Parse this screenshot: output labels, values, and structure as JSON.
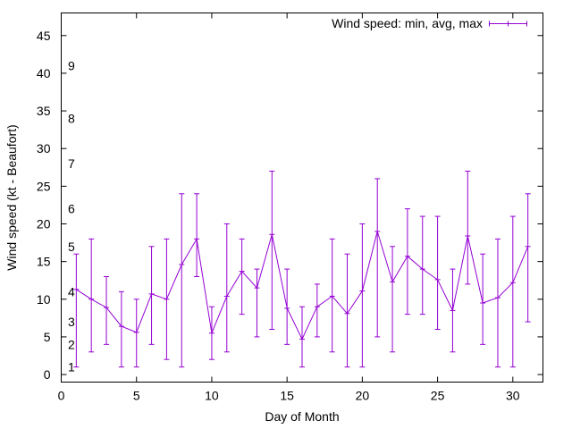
{
  "colors": {
    "series": "#9400d3",
    "axis": "#000000",
    "background": "#ffffff"
  },
  "chart_data": {
    "type": "line",
    "xlabel": "Day of Month",
    "ylabel": "Wind speed (kt - Beaufort)",
    "xlim": [
      0,
      32
    ],
    "ylim": [
      -1,
      48
    ],
    "xticks": [
      0,
      5,
      10,
      15,
      20,
      25,
      30
    ],
    "yticks": [
      0,
      5,
      10,
      15,
      20,
      25,
      30,
      35,
      40,
      45
    ],
    "grid": false,
    "legend_position": "top-right",
    "beaufort_labels": [
      {
        "label": "1",
        "y": 1
      },
      {
        "label": "2",
        "y": 4
      },
      {
        "label": "3",
        "y": 7
      },
      {
        "label": "4",
        "y": 11
      },
      {
        "label": "5",
        "y": 17
      },
      {
        "label": "6",
        "y": 22
      },
      {
        "label": "7",
        "y": 28
      },
      {
        "label": "8",
        "y": 34
      },
      {
        "label": "9",
        "y": 41
      }
    ],
    "series": [
      {
        "name": "Wind speed: min, avg, max",
        "x": [
          1,
          2,
          3,
          4,
          5,
          6,
          7,
          8,
          9,
          10,
          11,
          12,
          13,
          14,
          15,
          16,
          17,
          18,
          19,
          20,
          21,
          22,
          23,
          24,
          25,
          26,
          27,
          28,
          29,
          30,
          31
        ],
        "avg": [
          11.3,
          10,
          8.9,
          6.4,
          5.6,
          10.7,
          10,
          14.6,
          18,
          5.5,
          10.4,
          13.7,
          11.5,
          18.6,
          8.8,
          4.7,
          9,
          10.4,
          8.1,
          11.1,
          19,
          12.3,
          15.7,
          14,
          12.6,
          8.5,
          18.4,
          9.5,
          10.2,
          12.2,
          17
        ],
        "min": [
          1,
          3,
          4,
          1,
          1,
          4,
          2,
          1,
          13,
          2,
          3,
          8,
          5,
          6,
          4,
          1,
          5,
          3,
          1,
          1,
          5,
          3,
          8,
          8,
          6,
          3,
          12,
          4,
          1,
          1,
          7
        ],
        "max": [
          16,
          18,
          13,
          11,
          10,
          17,
          18,
          24,
          24,
          9,
          20,
          18,
          14,
          27,
          14,
          9,
          12,
          18,
          16,
          20,
          26,
          17,
          22,
          21,
          21,
          14,
          27,
          16,
          18,
          21,
          24
        ]
      }
    ]
  }
}
